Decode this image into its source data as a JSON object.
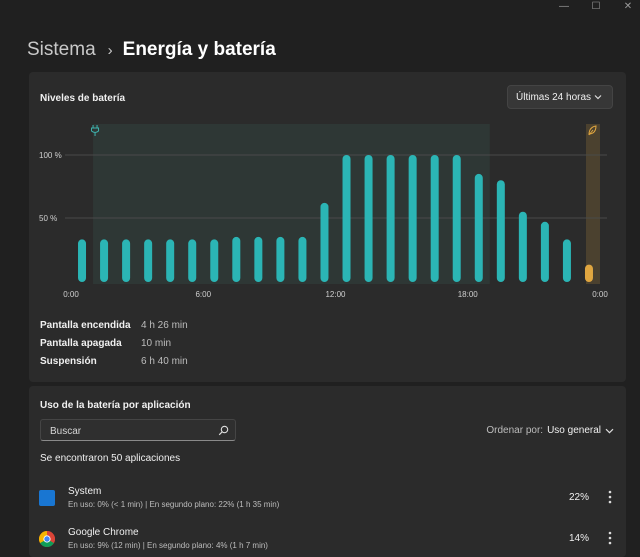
{
  "window": {
    "controls": {
      "minimize": "—",
      "maximize": "☐",
      "close": "✕"
    }
  },
  "breadcrumb": {
    "parent": "Sistema",
    "separator": "›",
    "current": "Energía y batería"
  },
  "battery_chart": {
    "title": "Niveles de batería",
    "range_dropdown": {
      "value": "Últimas 24 horas"
    },
    "colors": {
      "bar": "#2bb5b5",
      "bar_low": "#e0a640",
      "charging_band": "rgba(60,110,100,0.18)",
      "low_band": "rgba(224,166,64,0.18)",
      "grid": "#4a4a4a"
    }
  },
  "chart_data": {
    "type": "bar",
    "title": "Niveles de batería",
    "xlabel": "",
    "ylabel": "",
    "ylim": [
      0,
      100
    ],
    "y_ticks": [
      "50 %",
      "100 %"
    ],
    "x_ticks": [
      "0:00",
      "6:00",
      "12:00",
      "18:00",
      "0:00"
    ],
    "x_tick_hours": [
      0,
      6,
      12,
      18,
      24
    ],
    "grid": true,
    "series": [
      {
        "hours": [
          0.5,
          1.5,
          2.5,
          3.5,
          4.5,
          5.5,
          6.5,
          7.5,
          8.5,
          9.5,
          10.5,
          11.5,
          12.5,
          13.5,
          14.5,
          15.5,
          16.5,
          17.5,
          18.5,
          19.5,
          20.5,
          21.5,
          22.5,
          23.5
        ],
        "values": [
          33,
          33,
          33,
          33,
          33,
          33,
          33,
          35,
          35,
          35,
          35,
          62,
          100,
          100,
          100,
          100,
          100,
          100,
          85,
          80,
          55,
          47,
          33,
          13
        ]
      }
    ],
    "plugged_in_spans": [
      [
        1,
        19
      ]
    ],
    "battery_saver_spans": [
      [
        23.5,
        24
      ]
    ]
  },
  "stats": [
    {
      "label": "Pantalla encendida",
      "value": "4 h 26 min"
    },
    {
      "label": "Pantalla apagada",
      "value": "10 min"
    },
    {
      "label": "Suspensión",
      "value": "6 h 40 min"
    }
  ],
  "usage": {
    "title": "Uso de la batería por aplicación",
    "search": {
      "placeholder": "Buscar",
      "value": ""
    },
    "sort": {
      "label": "Ordenar por:",
      "value": "Uso general"
    },
    "found_text": "Se encontraron 50 aplicaciones",
    "apps": [
      {
        "name": "System",
        "detail": "En uso: 0% (< 1 min) | En segundo plano: 22% (1 h 35 min)",
        "percent": "22%",
        "icon": "system-icon"
      },
      {
        "name": "Google Chrome",
        "detail": "En uso: 9% (12 min) | En segundo plano: 4% (1 h 7 min)",
        "percent": "14%",
        "icon": "chrome-icon"
      }
    ]
  }
}
